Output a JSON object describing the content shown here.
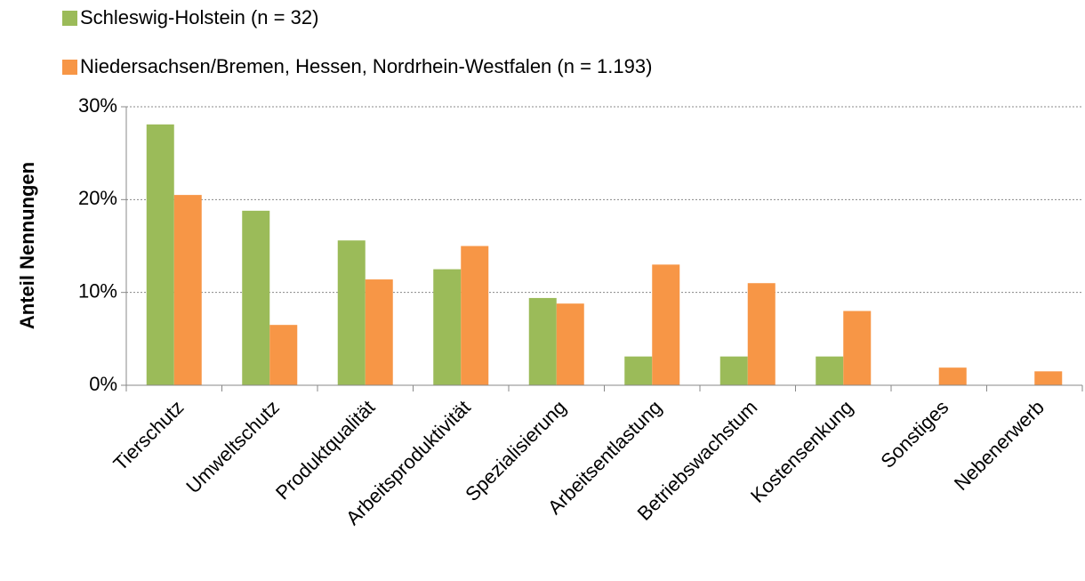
{
  "chart_data": {
    "type": "bar",
    "categories": [
      "Tierschutz",
      "Umweltschutz",
      "Produktqualität",
      "Arbeitsproduktivität",
      "Spezialisierung",
      "Arbeitsentlastung",
      "Betriebswachstum",
      "Kostensenkung",
      "Sonstiges",
      "Nebenerwerb"
    ],
    "series": [
      {
        "name": "Schleswig-Holstein (n = 32)",
        "color": "#9bbb59",
        "values": [
          28.1,
          18.8,
          15.6,
          12.5,
          9.4,
          3.1,
          3.1,
          3.1,
          0,
          0
        ]
      },
      {
        "name": "Niedersachsen/Bremen, Hessen, Nordrhein-Westfalen (n = 1.193)",
        "color": "#f79646",
        "values": [
          20.5,
          6.5,
          11.4,
          15.0,
          8.8,
          13.0,
          11.0,
          8.0,
          1.9,
          1.5
        ]
      }
    ],
    "ylabel": "Anteil Nennungen",
    "ylim": [
      0,
      30
    ],
    "yticks": [
      {
        "value": 0,
        "label": "0%"
      },
      {
        "value": 10,
        "label": "10%"
      },
      {
        "value": 20,
        "label": "20%"
      },
      {
        "value": 30,
        "label": "30%"
      }
    ],
    "grid": true,
    "legend": "top"
  }
}
